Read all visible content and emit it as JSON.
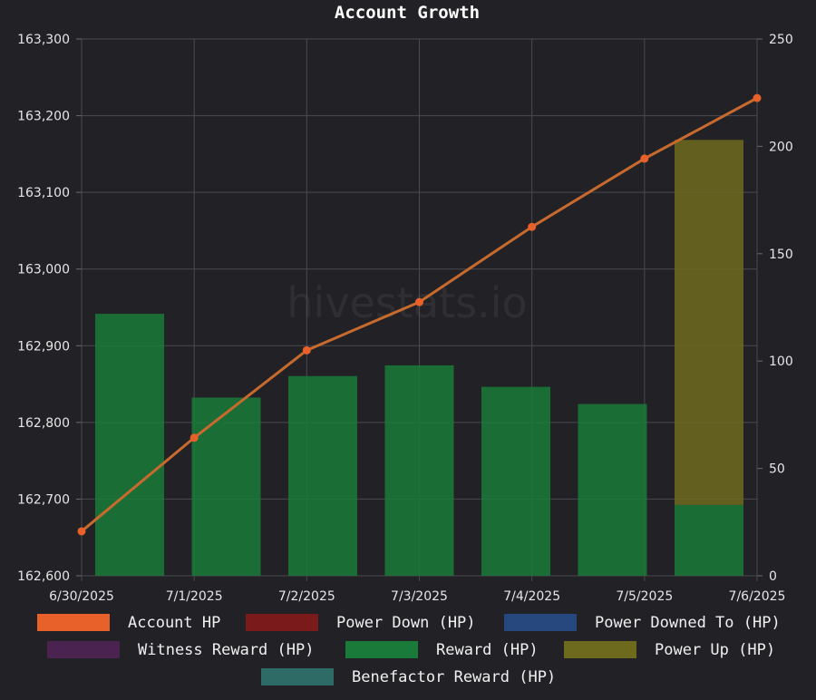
{
  "chart_data": {
    "type": "bar",
    "title": "Account Growth",
    "watermark": "hivestats.io",
    "categories": [
      "6/30/2025",
      "7/1/2025",
      "7/2/2025",
      "7/3/2025",
      "7/4/2025",
      "7/5/2025",
      "7/6/2025"
    ],
    "y_left": {
      "min": 162600,
      "max": 163300,
      "ticks": [
        "163,300",
        "163,200",
        "163,100",
        "163,000",
        "162,900",
        "162,800",
        "162,700",
        "162,600"
      ]
    },
    "y_right": {
      "min": 0,
      "max": 250,
      "ticks": [
        "250",
        "200",
        "150",
        "100",
        "50",
        "0"
      ]
    },
    "grid": true,
    "legend_position": "bottom",
    "series": [
      {
        "name": "Account HP",
        "type": "line",
        "axis": "left",
        "color": "#e8602a",
        "values": [
          162658,
          162780,
          162894,
          162957,
          163055,
          163144,
          163223
        ]
      },
      {
        "name": "Power Down (HP)",
        "type": "bar",
        "axis": "right",
        "color": "#7a1a1a",
        "values": [
          0,
          0,
          0,
          0,
          0,
          0,
          0
        ]
      },
      {
        "name": "Power Downed To (HP)",
        "type": "bar",
        "axis": "right",
        "color": "#27487e",
        "values": [
          0,
          0,
          0,
          0,
          0,
          0,
          0
        ]
      },
      {
        "name": "Witness Reward (HP)",
        "type": "bar",
        "axis": "right",
        "color": "#4a2350",
        "values": [
          0,
          0,
          0,
          0,
          0,
          0,
          0
        ]
      },
      {
        "name": "Reward (HP)",
        "type": "bar",
        "axis": "right",
        "color": "#1a7a3a",
        "values": [
          122,
          83,
          93,
          98,
          88,
          80,
          33
        ]
      },
      {
        "name": "Power Up (HP)",
        "type": "bar",
        "axis": "right",
        "color": "#6d6a1e",
        "values": [
          0,
          0,
          0,
          0,
          0,
          0,
          170
        ]
      },
      {
        "name": "Benefactor Reward (HP)",
        "type": "bar",
        "axis": "right",
        "color": "#2e6b66",
        "values": [
          0,
          0,
          0,
          0,
          0,
          0,
          0
        ]
      }
    ]
  }
}
